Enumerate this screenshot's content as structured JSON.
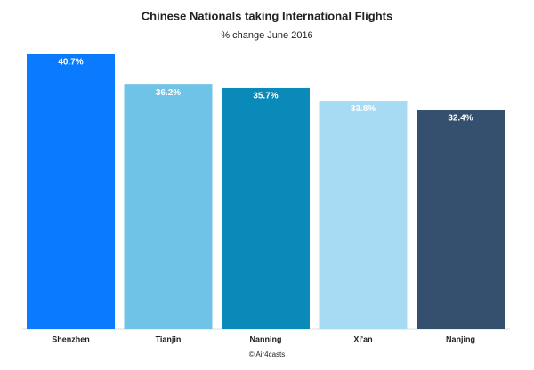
{
  "chart_data": {
    "type": "bar",
    "title": "Chinese Nationals taking International Flights",
    "subtitle": "% change June 2016",
    "categories": [
      "Shenzhen",
      "Tianjin",
      "Nanning",
      "Xi'an",
      "Nanjing"
    ],
    "values": [
      40.7,
      36.2,
      35.7,
      33.8,
      32.4
    ],
    "value_labels": [
      "40.7%",
      "36.2%",
      "35.7%",
      "33.8%",
      "32.4%"
    ],
    "colors": [
      "#0a7bff",
      "#6ec3e6",
      "#0a8ab8",
      "#a7dbf4",
      "#34506e"
    ],
    "source": "© Air4casts"
  }
}
